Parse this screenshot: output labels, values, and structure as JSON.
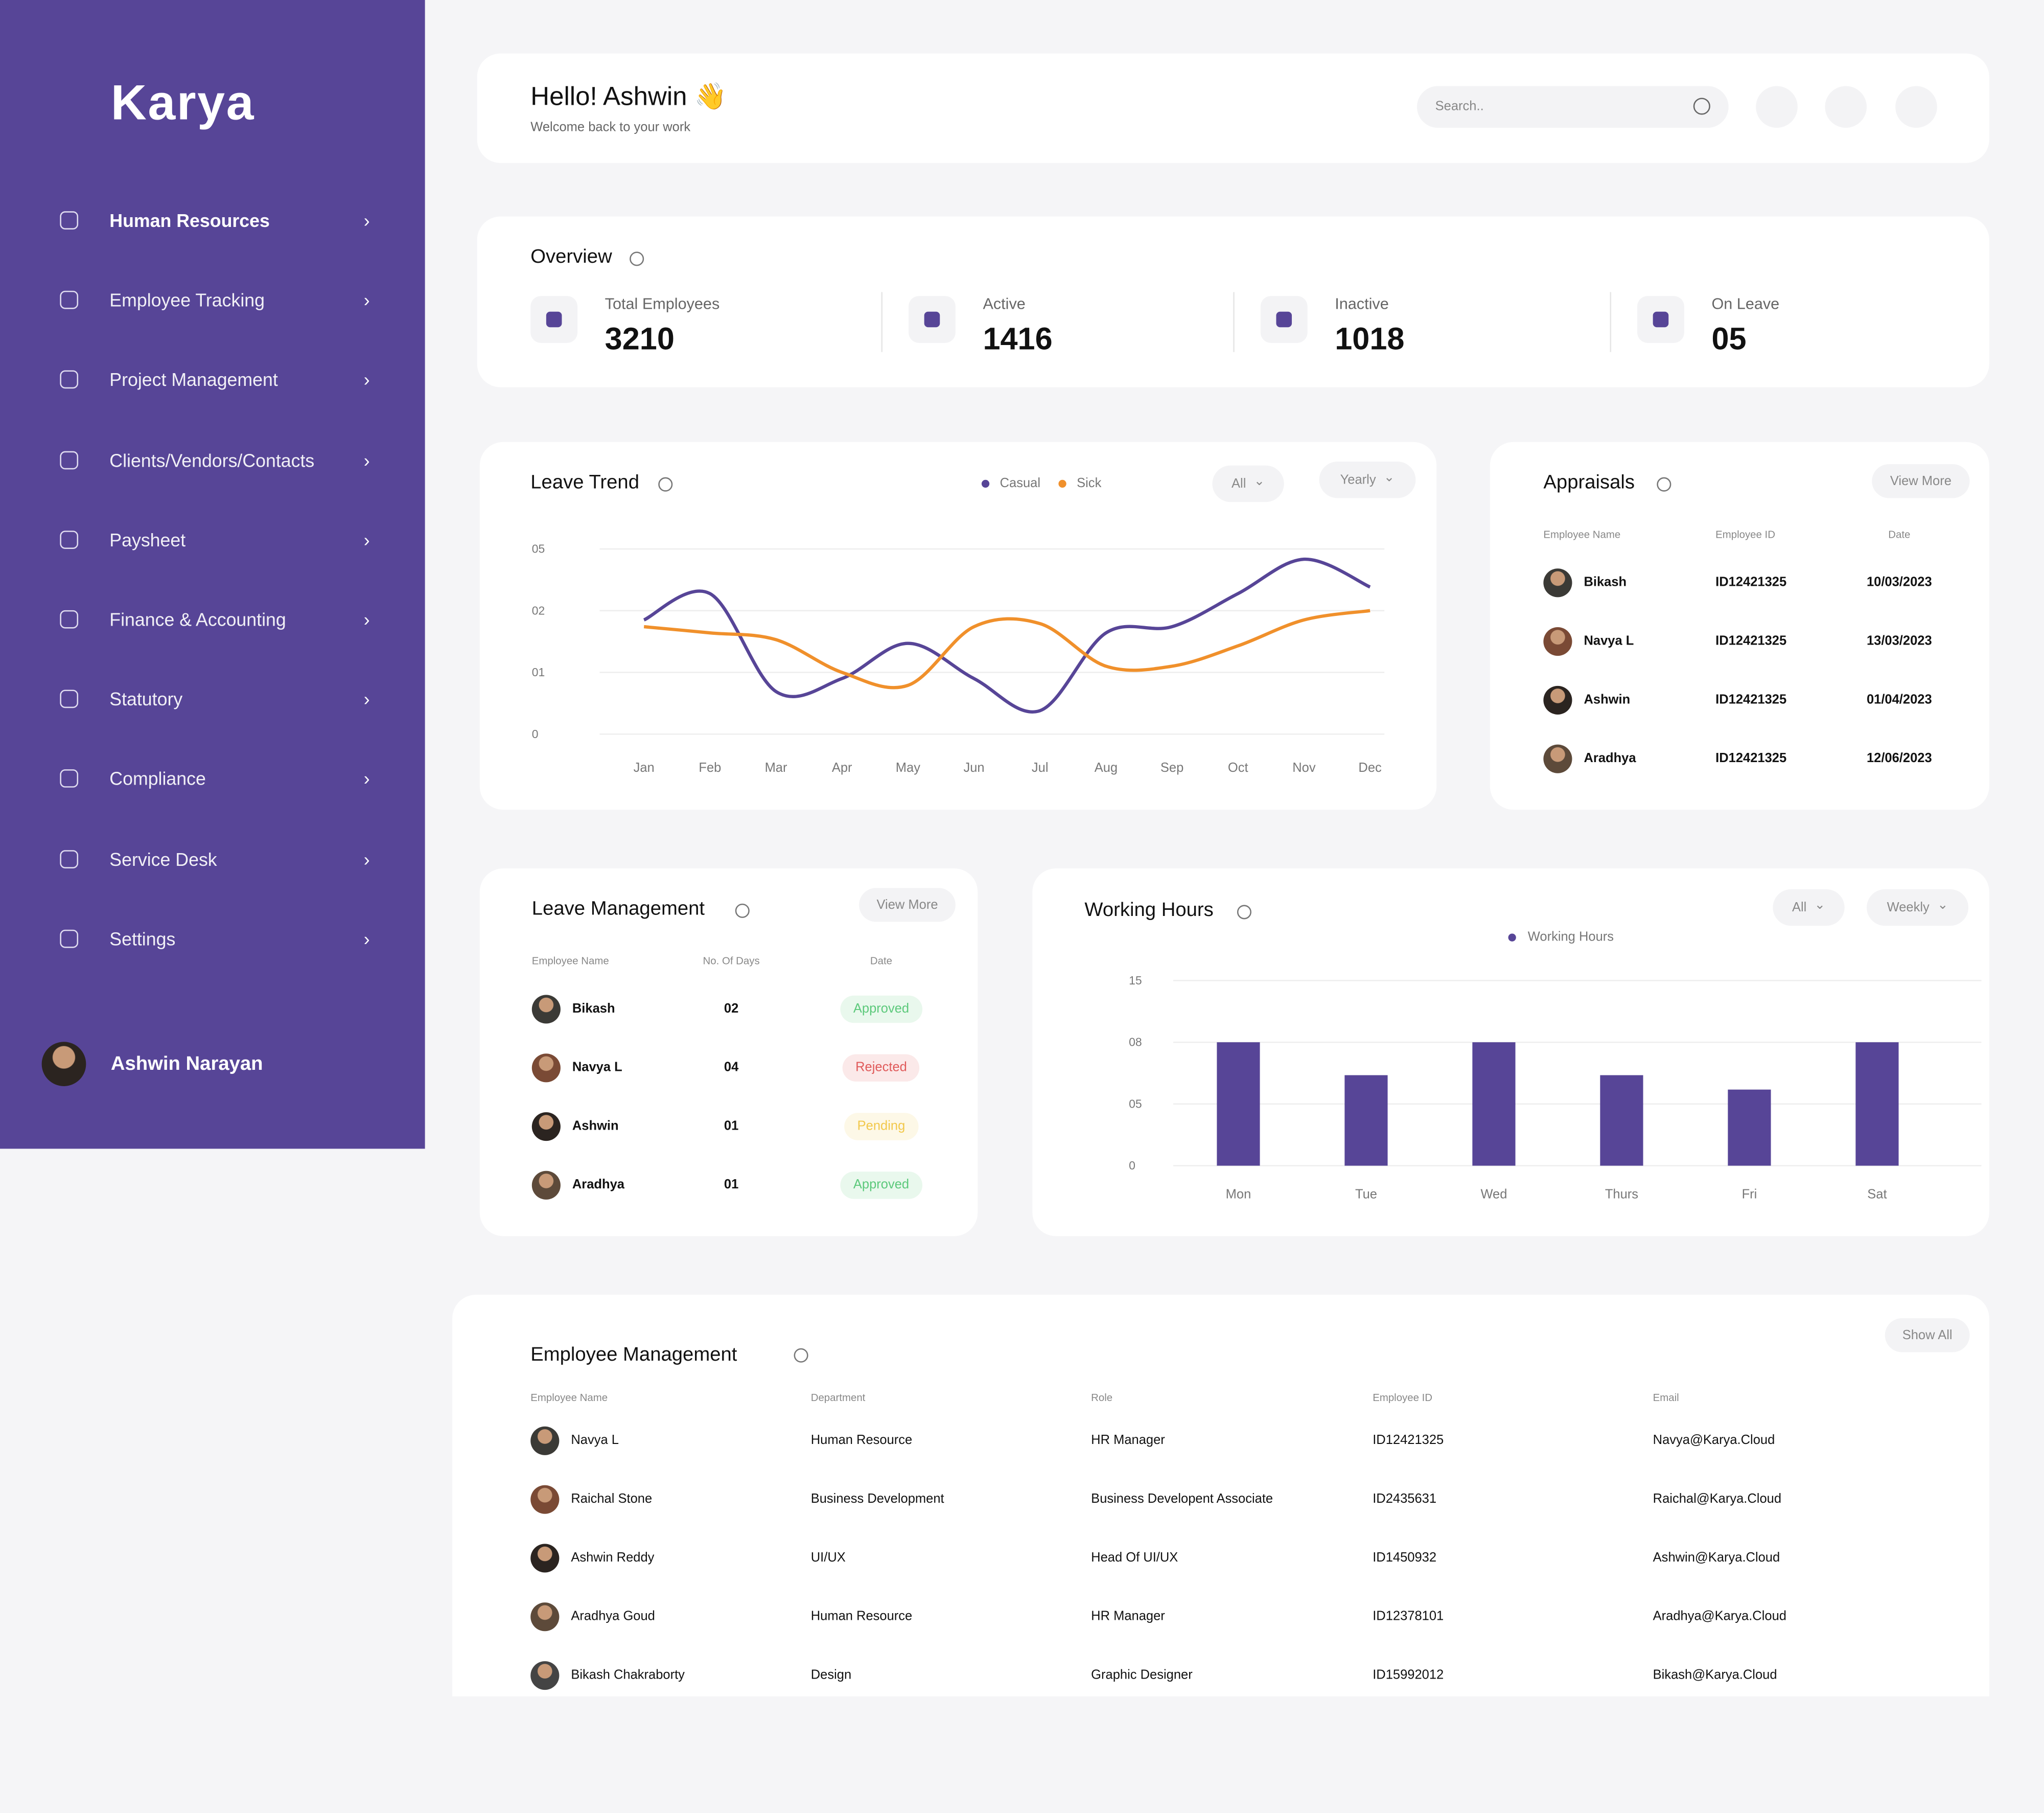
{
  "sidebar": {
    "logo": "Karya",
    "nav": [
      "Human Resources",
      "Employee Tracking",
      "Project Management",
      "Clients/Vendors/Contacts",
      "Paysheet",
      "Finance & Accounting",
      "Statutory",
      "Compliance",
      "Service Desk",
      "Settings"
    ],
    "user": "Ashwin Narayan"
  },
  "header": {
    "greeting": "Hello! Ashwin 👋",
    "subtitle": "Welcome back to your work",
    "search_placeholder": "Search.."
  },
  "overview": {
    "title": "Overview",
    "stats": [
      {
        "label": "Total Employees",
        "value": "3210"
      },
      {
        "label": "Active",
        "value": "1416"
      },
      {
        "label": "Inactive",
        "value": "1018"
      },
      {
        "label": "On Leave",
        "value": "05"
      }
    ]
  },
  "chart_data": [
    {
      "type": "line",
      "title": "Leave Trend",
      "filters": [
        "All",
        "Yearly"
      ],
      "categories": [
        "Jan",
        "Feb",
        "Mar",
        "Apr",
        "May",
        "Jun",
        "Jul",
        "Aug",
        "Sep",
        "Oct",
        "Nov",
        "Dec"
      ],
      "series": [
        {
          "name": "Casual",
          "color": "#574597",
          "values": [
            1.85,
            2.83,
            0.69,
            0.9,
            1.47,
            0.9,
            0.38,
            1.64,
            1.74,
            2.83,
            4.5,
            3.15
          ]
        },
        {
          "name": "Sick",
          "color": "#f0902b",
          "values": [
            1.74,
            1.64,
            1.53,
            1.0,
            0.79,
            1.74,
            1.79,
            1.1,
            1.1,
            1.43,
            1.85,
            2.0
          ]
        }
      ],
      "ylim": [
        0,
        5
      ],
      "yticks": [
        0,
        {
          "value": 1,
          "label": "01"
        },
        {
          "value": 2,
          "label": "02"
        },
        {
          "value": 5,
          "label": "05"
        }
      ],
      "grid": true
    },
    {
      "type": "bar",
      "title": "Working Hours",
      "filters": [
        "All",
        "Weekly"
      ],
      "categories": [
        "Mon",
        "Tue",
        "Wed",
        "Thurs",
        "Fri",
        "Sat"
      ],
      "series": [
        {
          "name": "Working Hours",
          "color": "#574597",
          "values": [
            8,
            6.4,
            8,
            6.4,
            5.7,
            8
          ]
        }
      ],
      "ylim": [
        0,
        15
      ],
      "yticks": [
        0,
        {
          "value": 5,
          "label": "05"
        },
        {
          "value": 8,
          "label": "08"
        },
        15
      ],
      "grid": true
    }
  ],
  "appraisals": {
    "title": "Appraisals",
    "action": "View More",
    "columns": [
      "Employee Name",
      "Employee ID",
      "Date"
    ],
    "rows": [
      [
        "Bikash",
        "ID12421325",
        "10/03/2023"
      ],
      [
        "Navya L",
        "ID12421325",
        "13/03/2023"
      ],
      [
        "Ashwin",
        "ID12421325",
        "01/04/2023"
      ],
      [
        "Aradhya",
        "ID12421325",
        "12/06/2023"
      ]
    ]
  },
  "leave_management": {
    "title": "Leave Management",
    "action": "View More",
    "columns": [
      "Employee Name",
      "No. Of Days",
      "Date"
    ],
    "rows": [
      {
        "name": "Bikash",
        "days": "02",
        "status": "Approved",
        "status_color": "#5cc97b"
      },
      {
        "name": "Navya L",
        "days": "04",
        "status": "Rejected",
        "status_color": "#e05a5a"
      },
      {
        "name": "Ashwin",
        "days": "01",
        "status": "Pending",
        "status_color": "#f2c84b"
      },
      {
        "name": "Aradhya",
        "days": "01",
        "status": "Approved",
        "status_color": "#5cc97b"
      }
    ]
  },
  "employee_management": {
    "title": "Employee Management",
    "action": "Show All",
    "columns": [
      "Employee Name",
      "Department",
      "Role",
      "Employee ID",
      "Email"
    ],
    "rows": [
      [
        "Navya L",
        "Human Resource",
        "HR Manager",
        "ID12421325",
        "Navya@Karya.Cloud"
      ],
      [
        "Raichal Stone",
        "Business Development",
        "Business Developent Associate",
        "ID2435631",
        "Raichal@Karya.Cloud"
      ],
      [
        "Ashwin Reddy",
        "UI/UX",
        "Head Of UI/UX",
        "ID1450932",
        "Ashwin@Karya.Cloud"
      ],
      [
        "Aradhya Goud",
        "Human Resource",
        "HR Manager",
        "ID12378101",
        "Aradhya@Karya.Cloud"
      ],
      [
        "Bikash Chakraborty",
        "Design",
        "Graphic Designer",
        "ID15992012",
        "Bikash@Karya.Cloud"
      ]
    ]
  }
}
